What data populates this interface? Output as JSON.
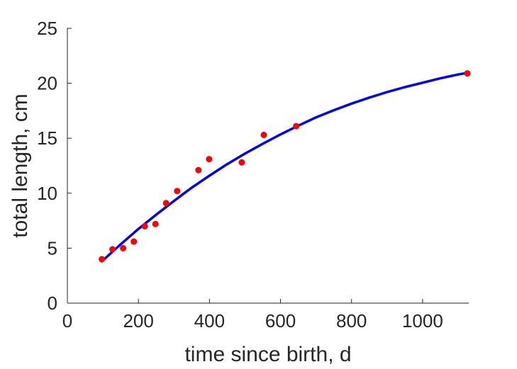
{
  "chart_data": {
    "type": "scatter",
    "title": "",
    "xlabel": "time since birth, d",
    "ylabel": "total length, cm",
    "xlim": [
      0,
      1130
    ],
    "ylim": [
      0,
      25
    ],
    "xticks": [
      0,
      200,
      400,
      600,
      800,
      1000
    ],
    "yticks": [
      0,
      5,
      10,
      15,
      20,
      25
    ],
    "grid": false,
    "series": [
      {
        "kind": "points",
        "color": "#ff0000",
        "x": [
          97,
          127,
          157,
          187,
          218,
          248,
          278,
          309,
          369,
          399,
          491,
          553,
          644,
          1126
        ],
        "y": [
          4.0,
          4.9,
          5.0,
          5.6,
          7.0,
          7.2,
          9.1,
          10.2,
          12.1,
          13.1,
          12.8,
          15.3,
          16.1,
          20.9
        ]
      },
      {
        "kind": "line",
        "color": "#0000ff",
        "x": [
          97,
          150,
          200,
          250,
          300,
          350,
          400,
          450,
          500,
          550,
          600,
          650,
          700,
          750,
          800,
          850,
          900,
          950,
          1000,
          1050,
          1100,
          1126
        ],
        "y": [
          3.8,
          5.35,
          6.75,
          8.05,
          9.3,
          10.5,
          11.6,
          12.65,
          13.6,
          14.5,
          15.35,
          16.15,
          16.9,
          17.55,
          18.15,
          18.7,
          19.2,
          19.65,
          20.05,
          20.45,
          20.8,
          20.95
        ]
      }
    ]
  }
}
